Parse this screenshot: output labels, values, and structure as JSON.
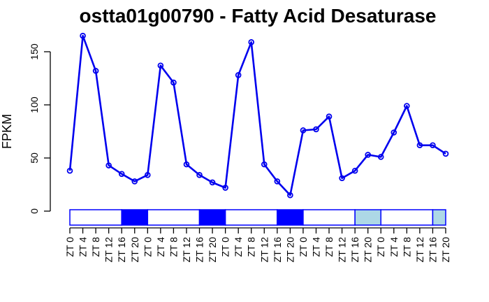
{
  "chart_data": {
    "type": "line",
    "title": "ostta01g00790 - Fatty Acid Desaturase",
    "xlabel": "",
    "ylabel": "FPKM",
    "ylim": [
      0,
      165
    ],
    "yticks": [
      0,
      50,
      100,
      150
    ],
    "grid": false,
    "legend": "none",
    "categories": [
      "ZT 0",
      "ZT 4",
      "ZT 8",
      "ZT 12",
      "ZT 16",
      "ZT 20",
      "ZT 0",
      "ZT 4",
      "ZT 8",
      "ZT 12",
      "ZT 16",
      "ZT 20",
      "ZT 0",
      "ZT 4",
      "ZT 8",
      "ZT 12",
      "ZT 16",
      "ZT 20",
      "ZT 0",
      "ZT 4",
      "ZT 8",
      "ZT 12",
      "ZT 16",
      "ZT 20",
      "ZT 0",
      "ZT 4",
      "ZT 8",
      "ZT 12",
      "ZT 16",
      "ZT 20"
    ],
    "values": [
      38,
      165,
      132,
      43,
      35,
      28,
      34,
      137,
      121,
      44,
      34,
      27,
      22,
      128,
      159,
      44,
      28,
      15,
      76,
      77,
      89,
      31,
      38,
      53,
      51,
      74,
      99,
      62,
      62,
      54
    ],
    "line_color": "#0000ee",
    "light_dark_bar": [
      {
        "from": 0,
        "to": 4,
        "state": "light",
        "color": "#ffffff"
      },
      {
        "from": 4,
        "to": 6,
        "state": "dark",
        "color": "#0000ff"
      },
      {
        "from": 6,
        "to": 10,
        "state": "light",
        "color": "#ffffff"
      },
      {
        "from": 10,
        "to": 12,
        "state": "dark",
        "color": "#0000ff"
      },
      {
        "from": 12,
        "to": 16,
        "state": "light",
        "color": "#ffffff"
      },
      {
        "from": 16,
        "to": 18,
        "state": "dark",
        "color": "#0000ff"
      },
      {
        "from": 18,
        "to": 22,
        "state": "light",
        "color": "#ffffff"
      },
      {
        "from": 22,
        "to": 24,
        "state": "subjective-dark",
        "color": "#add8e6"
      },
      {
        "from": 24,
        "to": 28,
        "state": "light",
        "color": "#ffffff"
      },
      {
        "from": 28,
        "to": 29,
        "state": "subjective-dark",
        "color": "#add8e6"
      }
    ]
  }
}
